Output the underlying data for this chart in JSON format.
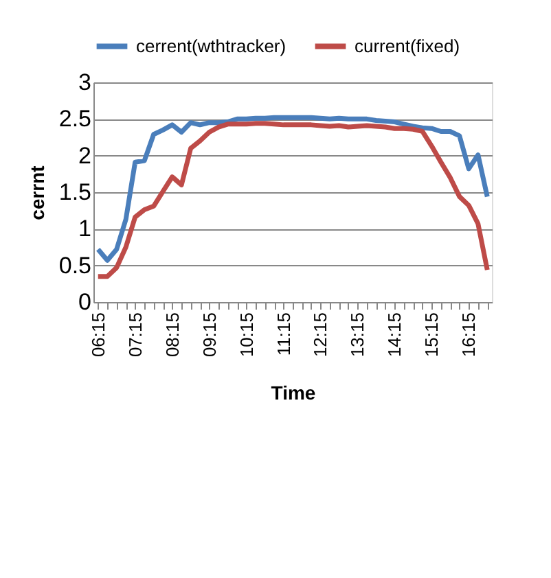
{
  "chart_data": {
    "type": "line",
    "xlabel": "Time",
    "ylabel": "cerrnt",
    "categories": [
      "06:15",
      null,
      null,
      null,
      "07:15",
      null,
      null,
      null,
      "08:15",
      null,
      null,
      null,
      "09:15",
      null,
      null,
      null,
      "10:15",
      null,
      null,
      null,
      "11:15",
      null,
      null,
      null,
      "12:15",
      null,
      null,
      null,
      "13:15",
      null,
      null,
      null,
      "14:15",
      null,
      null,
      null,
      "15:15",
      null,
      null,
      null,
      "16:15",
      null,
      null
    ],
    "series": [
      {
        "name": "cerrent(wthtracker)",
        "color": "#4a7ebb",
        "values": [
          0.72,
          0.57,
          0.72,
          1.13,
          1.91,
          1.93,
          2.29,
          2.35,
          2.42,
          2.32,
          2.45,
          2.42,
          2.45,
          2.45,
          2.46,
          2.5,
          2.5,
          2.51,
          2.51,
          2.52,
          2.52,
          2.52,
          2.52,
          2.52,
          2.51,
          2.5,
          2.51,
          2.5,
          2.5,
          2.5,
          2.48,
          2.47,
          2.46,
          2.43,
          2.4,
          2.38,
          2.37,
          2.33,
          2.33,
          2.27,
          1.82,
          2.01,
          1.44
        ]
      },
      {
        "name": "current(fixed)",
        "color": "#be4b48",
        "values": [
          0.35,
          0.35,
          0.47,
          0.75,
          1.16,
          1.26,
          1.31,
          1.51,
          1.71,
          1.6,
          2.1,
          2.2,
          2.32,
          2.39,
          2.43,
          2.43,
          2.43,
          2.44,
          2.44,
          2.43,
          2.42,
          2.42,
          2.42,
          2.42,
          2.41,
          2.4,
          2.41,
          2.39,
          2.4,
          2.41,
          2.4,
          2.39,
          2.37,
          2.37,
          2.36,
          2.33,
          2.13,
          1.91,
          1.7,
          1.44,
          1.32,
          1.07,
          0.44
        ]
      }
    ],
    "ylim": [
      0,
      3
    ],
    "yticks": [
      0,
      0.5,
      1,
      1.5,
      2,
      2.5,
      3
    ],
    "grid": "y",
    "legend": "top",
    "marker": "none",
    "line_style": "solid"
  }
}
